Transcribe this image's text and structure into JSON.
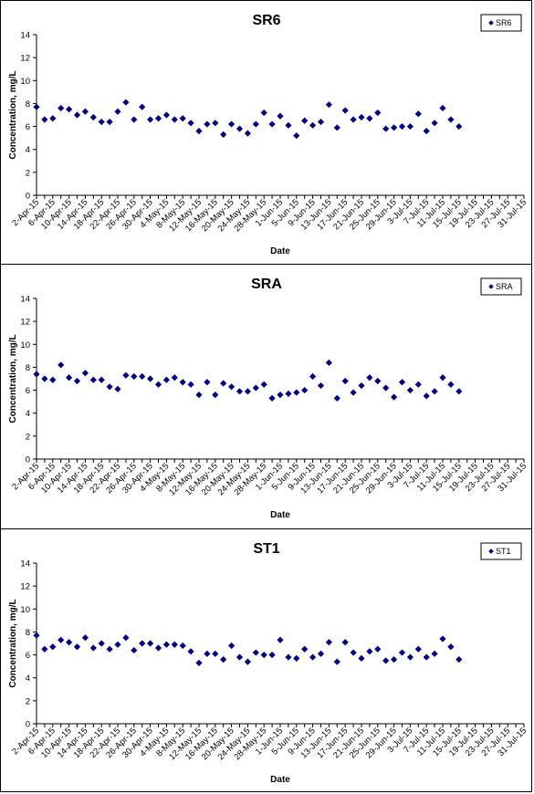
{
  "chart_data": [
    {
      "type": "scatter",
      "title": "SR6",
      "xlabel": "Date",
      "ylabel": "Concentration, mg/L",
      "ylim": [
        0,
        14
      ],
      "yticks": [
        "0",
        "2",
        "4",
        "6",
        "8",
        "10",
        "12",
        "14"
      ],
      "xtick_labels": [
        "2-Apr-15",
        "6-Apr-15",
        "10-Apr-15",
        "14-Apr-15",
        "18-Apr-15",
        "22-Apr-15",
        "26-Apr-15",
        "30-Apr-15",
        "4-May-15",
        "8-May-15",
        "12-May-15",
        "16-May-15",
        "20-May-15",
        "24-May-15",
        "28-May-15",
        "1-Jun-15",
        "5-Jun-15",
        "9-Jun-15",
        "13-Jun-15",
        "17-Jun-15",
        "21-Jun-15",
        "25-Jun-15",
        "29-Jun-15",
        "3-Jul-15",
        "7-Jul-15",
        "11-Jul-15",
        "15-Jul-15",
        "19-Jul-15",
        "23-Jul-15",
        "27-Jul-15",
        "31-Jul-15"
      ],
      "grid": false,
      "legend": "top-right",
      "series": [
        {
          "name": "SR6",
          "color": "#000080",
          "marker": "diamond",
          "points": [
            [
              "2-Apr-15",
              7.7
            ],
            [
              "4-Apr-15",
              6.6
            ],
            [
              "6-Apr-15",
              6.7
            ],
            [
              "8-Apr-15",
              7.6
            ],
            [
              "10-Apr-15",
              7.5
            ],
            [
              "12-Apr-15",
              7.0
            ],
            [
              "14-Apr-15",
              7.3
            ],
            [
              "16-Apr-15",
              6.8
            ],
            [
              "18-Apr-15",
              6.4
            ],
            [
              "20-Apr-15",
              6.4
            ],
            [
              "22-Apr-15",
              7.3
            ],
            [
              "24-Apr-15",
              8.1
            ],
            [
              "26-Apr-15",
              6.6
            ],
            [
              "28-Apr-15",
              7.7
            ],
            [
              "30-Apr-15",
              6.6
            ],
            [
              "2-May-15",
              6.7
            ],
            [
              "4-May-15",
              7.0
            ],
            [
              "6-May-15",
              6.6
            ],
            [
              "8-May-15",
              6.7
            ],
            [
              "10-May-15",
              6.3
            ],
            [
              "12-May-15",
              5.6
            ],
            [
              "14-May-15",
              6.2
            ],
            [
              "16-May-15",
              6.3
            ],
            [
              "18-May-15",
              5.3
            ],
            [
              "20-May-15",
              6.2
            ],
            [
              "22-May-15",
              5.8
            ],
            [
              "24-May-15",
              5.4
            ],
            [
              "26-May-15",
              6.2
            ],
            [
              "28-May-15",
              7.2
            ],
            [
              "30-May-15",
              6.2
            ],
            [
              "1-Jun-15",
              6.9
            ],
            [
              "3-Jun-15",
              6.1
            ],
            [
              "5-Jun-15",
              5.2
            ],
            [
              "7-Jun-15",
              6.5
            ],
            [
              "9-Jun-15",
              6.1
            ],
            [
              "11-Jun-15",
              6.4
            ],
            [
              "13-Jun-15",
              7.9
            ],
            [
              "15-Jun-15",
              5.9
            ],
            [
              "17-Jun-15",
              7.4
            ],
            [
              "19-Jun-15",
              6.6
            ],
            [
              "21-Jun-15",
              6.8
            ],
            [
              "23-Jun-15",
              6.7
            ],
            [
              "25-Jun-15",
              7.2
            ],
            [
              "27-Jun-15",
              5.8
            ],
            [
              "29-Jun-15",
              5.9
            ],
            [
              "1-Jul-15",
              6.0
            ],
            [
              "3-Jul-15",
              6.0
            ],
            [
              "5-Jul-15",
              7.1
            ],
            [
              "7-Jul-15",
              5.6
            ],
            [
              "9-Jul-15",
              6.3
            ],
            [
              "11-Jul-15",
              7.6
            ],
            [
              "13-Jul-15",
              6.6
            ],
            [
              "15-Jul-15",
              6.0
            ]
          ]
        }
      ]
    },
    {
      "type": "scatter",
      "title": "SRA",
      "xlabel": "Date",
      "ylabel": "Concentration, mg/L",
      "ylim": [
        0,
        14
      ],
      "yticks": [
        "0",
        "2",
        "4",
        "6",
        "8",
        "10",
        "12",
        "14"
      ],
      "xtick_labels": [
        "2-Apr-15",
        "6-Apr-15",
        "10-Apr-15",
        "14-Apr-15",
        "18-Apr-15",
        "22-Apr-15",
        "26-Apr-15",
        "30-Apr-15",
        "4-May-15",
        "8-May-15",
        "12-May-15",
        "16-May-15",
        "20-May-15",
        "24-May-15",
        "28-May-15",
        "1-Jun-15",
        "5-Jun-15",
        "9-Jun-15",
        "13-Jun-15",
        "17-Jun-15",
        "21-Jun-15",
        "25-Jun-15",
        "29-Jun-15",
        "3-Jul-15",
        "7-Jul-15",
        "11-Jul-15",
        "15-Jul-15",
        "19-Jul-15",
        "23-Jul-15",
        "27-Jul-15",
        "31-Jul-15"
      ],
      "grid": false,
      "legend": "top-right",
      "series": [
        {
          "name": "SRA",
          "color": "#000080",
          "marker": "diamond",
          "points": [
            [
              "2-Apr-15",
              7.4
            ],
            [
              "4-Apr-15",
              7.0
            ],
            [
              "6-Apr-15",
              6.9
            ],
            [
              "8-Apr-15",
              8.2
            ],
            [
              "10-Apr-15",
              7.1
            ],
            [
              "12-Apr-15",
              6.8
            ],
            [
              "14-Apr-15",
              7.5
            ],
            [
              "16-Apr-15",
              6.9
            ],
            [
              "18-Apr-15",
              6.9
            ],
            [
              "20-Apr-15",
              6.3
            ],
            [
              "22-Apr-15",
              6.1
            ],
            [
              "24-Apr-15",
              7.3
            ],
            [
              "26-Apr-15",
              7.2
            ],
            [
              "28-Apr-15",
              7.2
            ],
            [
              "30-Apr-15",
              7.0
            ],
            [
              "2-May-15",
              6.5
            ],
            [
              "4-May-15",
              6.9
            ],
            [
              "6-May-15",
              7.1
            ],
            [
              "8-May-15",
              6.7
            ],
            [
              "10-May-15",
              6.5
            ],
            [
              "12-May-15",
              5.6
            ],
            [
              "14-May-15",
              6.7
            ],
            [
              "16-May-15",
              5.6
            ],
            [
              "18-May-15",
              6.6
            ],
            [
              "20-May-15",
              6.3
            ],
            [
              "22-May-15",
              5.9
            ],
            [
              "24-May-15",
              5.9
            ],
            [
              "26-May-15",
              6.2
            ],
            [
              "28-May-15",
              6.5
            ],
            [
              "30-May-15",
              5.3
            ],
            [
              "1-Jun-15",
              5.6
            ],
            [
              "3-Jun-15",
              5.7
            ],
            [
              "5-Jun-15",
              5.8
            ],
            [
              "7-Jun-15",
              6.0
            ],
            [
              "9-Jun-15",
              7.2
            ],
            [
              "11-Jun-15",
              6.4
            ],
            [
              "13-Jun-15",
              8.4
            ],
            [
              "15-Jun-15",
              5.3
            ],
            [
              "17-Jun-15",
              6.8
            ],
            [
              "19-Jun-15",
              5.8
            ],
            [
              "21-Jun-15",
              6.4
            ],
            [
              "23-Jun-15",
              7.1
            ],
            [
              "25-Jun-15",
              6.8
            ],
            [
              "27-Jun-15",
              6.2
            ],
            [
              "29-Jun-15",
              5.4
            ],
            [
              "1-Jul-15",
              6.7
            ],
            [
              "3-Jul-15",
              6.0
            ],
            [
              "5-Jul-15",
              6.5
            ],
            [
              "7-Jul-15",
              5.5
            ],
            [
              "9-Jul-15",
              5.9
            ],
            [
              "11-Jul-15",
              7.1
            ],
            [
              "13-Jul-15",
              6.5
            ],
            [
              "15-Jul-15",
              5.9
            ]
          ]
        }
      ]
    },
    {
      "type": "scatter",
      "title": "ST1",
      "xlabel": "Date",
      "ylabel": "Concentration, mg/L",
      "ylim": [
        0,
        14
      ],
      "yticks": [
        "0",
        "2",
        "4",
        "6",
        "8",
        "10",
        "12",
        "14"
      ],
      "xtick_labels": [
        "2-Apr-15",
        "6-Apr-15",
        "10-Apr-15",
        "14-Apr-15",
        "18-Apr-15",
        "22-Apr-15",
        "26-Apr-15",
        "30-Apr-15",
        "4-May-15",
        "8-May-15",
        "12-May-15",
        "16-May-15",
        "20-May-15",
        "24-May-15",
        "28-May-15",
        "1-Jun-15",
        "5-Jun-15",
        "9-Jun-15",
        "13-Jun-15",
        "17-Jun-15",
        "21-Jun-15",
        "25-Jun-15",
        "29-Jun-15",
        "3-Jul-15",
        "7-Jul-15",
        "11-Jul-15",
        "15-Jul-15",
        "19-Jul-15",
        "23-Jul-15",
        "27-Jul-15",
        "31-Jul-15"
      ],
      "grid": false,
      "legend": "top-right",
      "series": [
        {
          "name": "ST1",
          "color": "#000080",
          "marker": "diamond",
          "points": [
            [
              "2-Apr-15",
              7.7
            ],
            [
              "4-Apr-15",
              6.5
            ],
            [
              "6-Apr-15",
              6.7
            ],
            [
              "8-Apr-15",
              7.3
            ],
            [
              "10-Apr-15",
              7.1
            ],
            [
              "12-Apr-15",
              6.7
            ],
            [
              "14-Apr-15",
              7.5
            ],
            [
              "16-Apr-15",
              6.6
            ],
            [
              "18-Apr-15",
              7.0
            ],
            [
              "20-Apr-15",
              6.5
            ],
            [
              "22-Apr-15",
              6.9
            ],
            [
              "24-Apr-15",
              7.5
            ],
            [
              "26-Apr-15",
              6.4
            ],
            [
              "28-Apr-15",
              7.0
            ],
            [
              "30-Apr-15",
              7.0
            ],
            [
              "2-May-15",
              6.6
            ],
            [
              "4-May-15",
              6.9
            ],
            [
              "6-May-15",
              6.9
            ],
            [
              "8-May-15",
              6.8
            ],
            [
              "10-May-15",
              6.3
            ],
            [
              "12-May-15",
              5.3
            ],
            [
              "14-May-15",
              6.1
            ],
            [
              "16-May-15",
              6.1
            ],
            [
              "18-May-15",
              5.6
            ],
            [
              "20-May-15",
              6.8
            ],
            [
              "22-May-15",
              5.8
            ],
            [
              "24-May-15",
              5.4
            ],
            [
              "26-May-15",
              6.2
            ],
            [
              "28-May-15",
              6.0
            ],
            [
              "30-May-15",
              6.0
            ],
            [
              "1-Jun-15",
              7.3
            ],
            [
              "3-Jun-15",
              5.8
            ],
            [
              "5-Jun-15",
              5.7
            ],
            [
              "7-Jun-15",
              6.5
            ],
            [
              "9-Jun-15",
              5.8
            ],
            [
              "11-Jun-15",
              6.1
            ],
            [
              "13-Jun-15",
              7.1
            ],
            [
              "15-Jun-15",
              5.4
            ],
            [
              "17-Jun-15",
              7.1
            ],
            [
              "19-Jun-15",
              6.2
            ],
            [
              "21-Jun-15",
              5.7
            ],
            [
              "23-Jun-15",
              6.3
            ],
            [
              "25-Jun-15",
              6.5
            ],
            [
              "27-Jun-15",
              5.5
            ],
            [
              "29-Jun-15",
              5.6
            ],
            [
              "1-Jul-15",
              6.2
            ],
            [
              "3-Jul-15",
              5.8
            ],
            [
              "5-Jul-15",
              6.5
            ],
            [
              "7-Jul-15",
              5.8
            ],
            [
              "9-Jul-15",
              6.1
            ],
            [
              "11-Jul-15",
              7.4
            ],
            [
              "13-Jul-15",
              6.7
            ],
            [
              "15-Jul-15",
              5.6
            ]
          ]
        }
      ]
    }
  ]
}
